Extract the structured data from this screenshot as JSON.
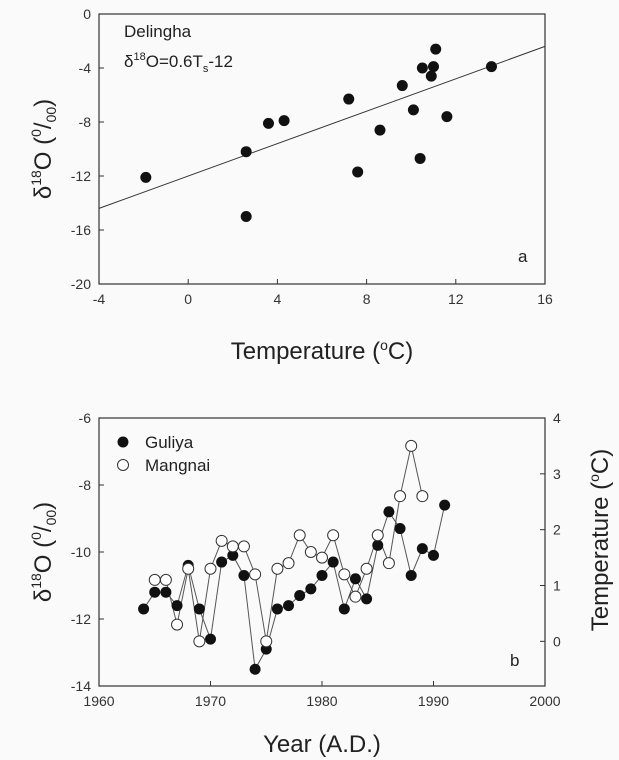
{
  "chart_data": [
    {
      "type": "scatter",
      "panel_label": "a",
      "annotation": {
        "site": "Delingha",
        "equation": "δ18O=0.6Ts-12"
      },
      "xlabel": "Temperature (oC)",
      "ylabel": "δ18O (0/00)",
      "xlim": [
        -4,
        16
      ],
      "ylim": [
        -20,
        0
      ],
      "xticks": [
        "-4",
        "0",
        "4",
        "8",
        "12",
        "16"
      ],
      "yticks": [
        "0",
        "-4",
        "-8",
        "-12",
        "-16",
        "-20"
      ],
      "points": [
        {
          "x": -1.9,
          "y": -12.1
        },
        {
          "x": 2.6,
          "y": -10.2
        },
        {
          "x": 2.6,
          "y": -15.0
        },
        {
          "x": 3.6,
          "y": -8.1
        },
        {
          "x": 4.3,
          "y": -7.9
        },
        {
          "x": 7.2,
          "y": -6.3
        },
        {
          "x": 7.6,
          "y": -11.7
        },
        {
          "x": 8.6,
          "y": -8.6
        },
        {
          "x": 9.6,
          "y": -5.3
        },
        {
          "x": 10.1,
          "y": -7.1
        },
        {
          "x": 10.4,
          "y": -10.7
        },
        {
          "x": 10.5,
          "y": -4.0
        },
        {
          "x": 10.9,
          "y": -4.6
        },
        {
          "x": 11.0,
          "y": -3.9
        },
        {
          "x": 11.1,
          "y": -2.6
        },
        {
          "x": 11.6,
          "y": -7.6
        },
        {
          "x": 13.6,
          "y": -3.9
        }
      ],
      "fit_line": {
        "slope": 0.6,
        "intercept": -12
      }
    },
    {
      "type": "line",
      "panel_label": "b",
      "xlabel": "Year (A.D.)",
      "ylabel": "δ18O (0/00)",
      "ylabel_right": "Temperature (oC)",
      "xlim": [
        1960,
        2000
      ],
      "ylim": [
        -14,
        -6
      ],
      "ylim_right": [
        -0.8,
        4
      ],
      "xticks": [
        "1960",
        "1970",
        "1980",
        "1990",
        "2000"
      ],
      "yticks": [
        "-6",
        "-8",
        "-10",
        "-12",
        "-14"
      ],
      "yticks_right": [
        "4",
        "3",
        "2",
        "1",
        "0"
      ],
      "legend_position": "top-left",
      "series": [
        {
          "name": "Guliya",
          "marker": "filled",
          "axis": "left",
          "x": [
            1964,
            1965,
            1966,
            1967,
            1968,
            1969,
            1970,
            1971,
            1972,
            1973,
            1974,
            1975,
            1976,
            1977,
            1978,
            1979,
            1980,
            1981,
            1982,
            1983,
            1984,
            1985,
            1986,
            1987,
            1988,
            1989,
            1990,
            1991
          ],
          "values": [
            -11.7,
            -11.2,
            -11.2,
            -11.6,
            -10.4,
            -11.7,
            -12.6,
            -10.3,
            -10.1,
            -10.7,
            -13.5,
            -12.9,
            -11.7,
            -11.6,
            -11.3,
            -11.1,
            -10.7,
            -10.3,
            -11.7,
            -10.8,
            -11.4,
            -9.8,
            -8.8,
            -9.3,
            -10.7,
            -9.9,
            -10.1,
            -8.6
          ]
        },
        {
          "name": "Mangnai",
          "marker": "open",
          "axis": "right",
          "x": [
            1965,
            1966,
            1967,
            1968,
            1969,
            1970,
            1971,
            1972,
            1973,
            1974,
            1975,
            1976,
            1977,
            1978,
            1979,
            1980,
            1981,
            1982,
            1983,
            1984,
            1985,
            1986,
            1987,
            1988,
            1989
          ],
          "values": [
            1.1,
            1.1,
            0.3,
            1.3,
            0.0,
            1.3,
            1.8,
            1.7,
            1.7,
            1.2,
            0.0,
            1.3,
            1.4,
            1.9,
            1.6,
            1.5,
            1.9,
            1.2,
            0.8,
            1.3,
            1.9,
            1.4,
            2.6,
            3.5,
            2.6
          ]
        }
      ]
    }
  ]
}
